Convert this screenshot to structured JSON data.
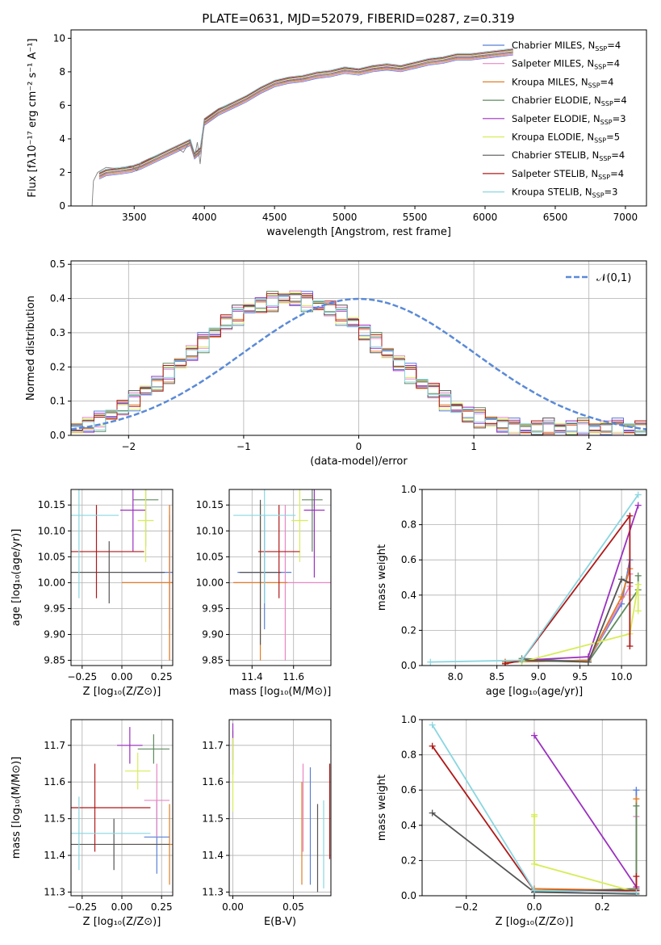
{
  "figure": {
    "title": "PLATE=0631, MJD=52079, FIBERID=0287, z=0.319"
  },
  "legend_series": [
    {
      "name": "Chabrier MILES, N",
      "sub": "SSP",
      "tail": "=4",
      "color": "#5a7fd6"
    },
    {
      "name": "Salpeter MILES, N",
      "sub": "SSP",
      "tail": "=4",
      "color": "#e887c4"
    },
    {
      "name": "Kroupa MILES, N",
      "sub": "SSP",
      "tail": "=4",
      "color": "#e07f28"
    },
    {
      "name": "Chabrier ELODIE, N",
      "sub": "SSP",
      "tail": "=4",
      "color": "#5e8a5e"
    },
    {
      "name": "Salpeter ELODIE, N",
      "sub": "SSP",
      "tail": "=3",
      "color": "#9b30c0"
    },
    {
      "name": "Kroupa ELODIE, N",
      "sub": "SSP",
      "tail": "=5",
      "color": "#d8ec5a"
    },
    {
      "name": "Chabrier STELIB, N",
      "sub": "SSP",
      "tail": "=4",
      "color": "#555555"
    },
    {
      "name": "Salpeter STELIB, N",
      "sub": "SSP",
      "tail": "=4",
      "color": "#b01818"
    },
    {
      "name": "Kroupa STELIB, N",
      "sub": "SSP",
      "tail": "=3",
      "color": "#8ad6e0"
    }
  ],
  "chart_data": [
    {
      "id": "spectrum",
      "type": "line",
      "xlabel": "wavelength [Angstrom, rest frame]",
      "ylabel": "Flux [fλ10⁻¹⁷ erg cm⁻² s⁻¹ A⁻¹]",
      "xlim": [
        3050,
        7150
      ],
      "ylim": [
        0,
        10.5
      ],
      "xticks": [
        3500,
        4000,
        4500,
        5000,
        5500,
        6000,
        6500,
        7000
      ],
      "yticks": [
        0,
        2,
        4,
        6,
        8,
        10
      ],
      "data_color": "#808080",
      "data_x": [
        3200,
        3210,
        3240,
        3260,
        3300,
        3400,
        3480,
        3520,
        3550,
        3600,
        3700,
        3800,
        3850,
        3900,
        3930,
        3950,
        3970,
        4000,
        4100,
        4200,
        4300,
        4400,
        4500,
        4600,
        4700,
        4800,
        4900,
        5000,
        5100,
        5200,
        5300,
        5400,
        5500,
        5600,
        5700,
        5800,
        5900,
        6000,
        6100,
        6200
      ],
      "data_y": [
        0.0,
        1.5,
        2.0,
        2.1,
        2.3,
        2.2,
        2.4,
        2.1,
        2.6,
        2.8,
        3.1,
        3.5,
        3.2,
        3.9,
        2.9,
        3.8,
        2.5,
        5.2,
        5.8,
        6.1,
        6.5,
        7.0,
        7.4,
        7.6,
        7.7,
        7.9,
        8.0,
        8.2,
        8.1,
        8.3,
        8.4,
        8.3,
        8.5,
        8.7,
        8.8,
        9.0,
        9.0,
        9.1,
        9.2,
        9.3
      ],
      "model_x": [
        3250,
        3300,
        3400,
        3480,
        3550,
        3600,
        3700,
        3800,
        3900,
        3930,
        3970,
        4000,
        4100,
        4200,
        4300,
        4400,
        4500,
        4600,
        4700,
        4800,
        4900,
        5000,
        5100,
        5200,
        5300,
        5400,
        5500,
        5600,
        5700,
        5800,
        5900,
        6000,
        6100,
        6200
      ],
      "model_y": [
        1.8,
        2.0,
        2.1,
        2.2,
        2.4,
        2.6,
        3.0,
        3.4,
        3.8,
        3.0,
        3.3,
        5.0,
        5.6,
        6.0,
        6.4,
        6.9,
        7.3,
        7.5,
        7.6,
        7.8,
        7.9,
        8.1,
        8.0,
        8.2,
        8.3,
        8.2,
        8.4,
        8.6,
        8.7,
        8.9,
        8.9,
        9.0,
        9.1,
        9.2
      ]
    },
    {
      "id": "residual-histogram",
      "type": "line",
      "xlabel": "(data-model)/error",
      "ylabel": "Normed distribution",
      "xlim": [
        -2.5,
        2.5
      ],
      "ylim": [
        0,
        0.51
      ],
      "xticks": [
        -2,
        -1,
        0,
        1,
        2
      ],
      "yticks": [
        0.0,
        0.1,
        0.2,
        0.3,
        0.4,
        0.5
      ],
      "legend": "𝒩(0,1)",
      "gauss_color": "#5a8ad8",
      "bin_width": 0.1,
      "hist_center": [
        0.02,
        0.03,
        0.04,
        0.06,
        0.08,
        0.1,
        0.13,
        0.15,
        0.18,
        0.21,
        0.24,
        0.27,
        0.3,
        0.33,
        0.35,
        0.37,
        0.38,
        0.39,
        0.4,
        0.4,
        0.39,
        0.38,
        0.37,
        0.35,
        0.33,
        0.3,
        0.27,
        0.24,
        0.21,
        0.18,
        0.15,
        0.13,
        0.1,
        0.08,
        0.06,
        0.05,
        0.04,
        0.03,
        0.02,
        0.02,
        0.02,
        0.02,
        0.02,
        0.02,
        0.02,
        0.02,
        0.02,
        0.02,
        0.02,
        0.02
      ]
    },
    {
      "id": "age-vs-metallicity",
      "type": "scatter",
      "xlabel": "Z [log₁₀(Z/Z⊙)]",
      "ylabel": "age  [log₁₀(age/yr)]",
      "xlim": [
        -0.32,
        0.32
      ],
      "ylim": [
        9.84,
        10.18
      ],
      "xticks": [
        -0.25,
        0.0,
        0.25
      ],
      "xticklabels": [
        "−0.25",
        "0.00",
        "0.25"
      ],
      "yticks": [
        9.85,
        9.9,
        9.95,
        10.0,
        10.05,
        10.1,
        10.15
      ],
      "points": [
        {
          "series": 0,
          "x": 0.3,
          "y": 10.02,
          "xerr": 0.3,
          "yerr": 0.11
        },
        {
          "series": 1,
          "x": 0.3,
          "y": 10.0,
          "xerr": 0.3,
          "yerr": 0.15
        },
        {
          "series": 2,
          "x": 0.3,
          "y": 10.0,
          "xerr": 0.3,
          "yerr": 0.15
        },
        {
          "series": 3,
          "x": 0.15,
          "y": 10.16,
          "xerr": 0.08,
          "yerr": 0.09
        },
        {
          "series": 4,
          "x": 0.07,
          "y": 10.14,
          "xerr": 0.08,
          "yerr": 0.08
        },
        {
          "series": 5,
          "x": 0.15,
          "y": 10.12,
          "xerr": 0.05,
          "yerr": 0.08
        },
        {
          "series": 6,
          "x": -0.08,
          "y": 10.02,
          "xerr": 0.35,
          "yerr": 0.06
        },
        {
          "series": 7,
          "x": -0.16,
          "y": 10.06,
          "xerr": 0.3,
          "yerr": 0.09
        },
        {
          "series": 8,
          "x": -0.27,
          "y": 10.13,
          "xerr": 0.25,
          "yerr": 0.16
        }
      ]
    },
    {
      "id": "age-vs-mass",
      "type": "scatter",
      "xlabel": "mass [log₁₀(M/M⊙)]",
      "ylabel": "",
      "xlim": [
        11.29,
        11.78
      ],
      "ylim": [
        9.84,
        10.18
      ],
      "xticks": [
        11.4,
        11.6
      ],
      "yticks": [
        9.85,
        9.9,
        9.95,
        10.0,
        10.05,
        10.1,
        10.15
      ],
      "points": [
        {
          "series": 0,
          "x": 11.46,
          "y": 10.02,
          "xerr": 0.13,
          "yerr": 0.11
        },
        {
          "series": 1,
          "x": 11.56,
          "y": 10.0,
          "xerr": 0.25,
          "yerr": 0.15
        },
        {
          "series": 2,
          "x": 11.44,
          "y": 10.0,
          "xerr": 0.13,
          "yerr": 0.15
        },
        {
          "series": 3,
          "x": 11.69,
          "y": 10.16,
          "xerr": 0.05,
          "yerr": 0.1
        },
        {
          "series": 4,
          "x": 11.7,
          "y": 10.14,
          "xerr": 0.05,
          "yerr": 0.13
        },
        {
          "series": 5,
          "x": 11.63,
          "y": 10.12,
          "xerr": 0.04,
          "yerr": 0.08
        },
        {
          "series": 6,
          "x": 11.44,
          "y": 10.02,
          "xerr": 0.1,
          "yerr": 0.14
        },
        {
          "series": 7,
          "x": 11.53,
          "y": 10.06,
          "xerr": 0.1,
          "yerr": 0.09
        },
        {
          "series": 8,
          "x": 11.46,
          "y": 10.13,
          "xerr": 0.15,
          "yerr": 0.17
        }
      ]
    },
    {
      "id": "mass-weight-vs-age",
      "type": "line",
      "xlabel": "age  [log₁₀(age/yr)]",
      "ylabel": "mass weight",
      "xlim": [
        7.6,
        10.3
      ],
      "ylim": [
        0,
        1.0
      ],
      "xticks": [
        8.0,
        8.5,
        9.0,
        9.5,
        10.0
      ],
      "yticks": [
        0.0,
        0.2,
        0.4,
        0.6,
        0.8,
        1.0
      ],
      "series": [
        {
          "series": 0,
          "x": [
            8.6,
            9.6,
            10.0,
            10.1
          ],
          "y": [
            0.02,
            0.03,
            0.35,
            0.6
          ]
        },
        {
          "series": 1,
          "x": [
            8.6,
            9.6,
            10.1,
            10.1
          ],
          "y": [
            0.02,
            0.03,
            0.45,
            0.52
          ]
        },
        {
          "series": 2,
          "x": [
            8.6,
            9.6,
            10.0,
            10.1
          ],
          "y": [
            0.02,
            0.03,
            0.39,
            0.55
          ]
        },
        {
          "series": 3,
          "x": [
            8.8,
            9.6,
            10.2,
            10.2
          ],
          "y": [
            0.04,
            0.02,
            0.43,
            0.51
          ]
        },
        {
          "series": 4,
          "x": [
            8.8,
            9.6,
            10.2
          ],
          "y": [
            0.03,
            0.05,
            0.91
          ]
        },
        {
          "series": 5,
          "x": [
            8.8,
            10.1,
            10.2,
            10.2
          ],
          "y": [
            0.02,
            0.18,
            0.46,
            0.31
          ]
        },
        {
          "series": 6,
          "x": [
            8.6,
            8.8,
            9.6,
            10.0,
            10.1
          ],
          "y": [
            0.01,
            0.03,
            0.02,
            0.49,
            0.47
          ]
        },
        {
          "series": 7,
          "x": [
            8.6,
            8.8,
            10.1,
            10.1
          ],
          "y": [
            0.01,
            0.03,
            0.85,
            0.11
          ]
        },
        {
          "series": 8,
          "x": [
            7.7,
            8.8,
            10.2
          ],
          "y": [
            0.02,
            0.03,
            0.97
          ]
        }
      ]
    },
    {
      "id": "mass-vs-metallicity",
      "type": "scatter",
      "xlabel": "Z [log₁₀(Z/Z⊙)]",
      "ylabel": "mass [log₁₀(M/M⊙)]",
      "xlim": [
        -0.32,
        0.32
      ],
      "ylim": [
        11.29,
        11.77
      ],
      "xticks": [
        -0.25,
        0.0,
        0.25
      ],
      "xticklabels": [
        "−0.25",
        "0.00",
        "0.25"
      ],
      "yticks": [
        11.3,
        11.4,
        11.5,
        11.6,
        11.7
      ],
      "points": [
        {
          "series": 0,
          "x": 0.22,
          "y": 11.45,
          "xerr": 0.08,
          "yerr": 0.1
        },
        {
          "series": 1,
          "x": 0.22,
          "y": 11.55,
          "xerr": 0.08,
          "yerr": 0.1
        },
        {
          "series": 2,
          "x": 0.3,
          "y": 11.43,
          "xerr": 0.3,
          "yerr": 0.11
        },
        {
          "series": 3,
          "x": 0.2,
          "y": 11.69,
          "xerr": 0.1,
          "yerr": 0.04
        },
        {
          "series": 4,
          "x": 0.05,
          "y": 11.7,
          "xerr": 0.08,
          "yerr": 0.05
        },
        {
          "series": 5,
          "x": 0.1,
          "y": 11.63,
          "xerr": 0.08,
          "yerr": 0.05
        },
        {
          "series": 6,
          "x": -0.05,
          "y": 11.43,
          "xerr": 0.35,
          "yerr": 0.07
        },
        {
          "series": 7,
          "x": -0.17,
          "y": 11.53,
          "xerr": 0.35,
          "yerr": 0.12
        },
        {
          "series": 8,
          "x": -0.27,
          "y": 11.46,
          "xerr": 0.45,
          "yerr": 0.1
        }
      ]
    },
    {
      "id": "mass-vs-ebv",
      "type": "scatter",
      "xlabel": "E(B-V)",
      "ylabel": "",
      "xlim": [
        -0.003,
        0.081
      ],
      "ylim": [
        11.29,
        11.77
      ],
      "xticks": [
        0.0,
        0.05
      ],
      "xticklabels": [
        "0.00",
        "0.05"
      ],
      "yticks": [
        11.3,
        11.4,
        11.5,
        11.6,
        11.7
      ],
      "points": [
        {
          "series": 0,
          "x": 0.064,
          "y": 11.48,
          "yerr": 0.16
        },
        {
          "series": 1,
          "x": 0.058,
          "y": 11.53,
          "yerr": 0.12
        },
        {
          "series": 2,
          "x": 0.057,
          "y": 11.46,
          "yerr": 0.14
        },
        {
          "series": 3,
          "x": 0.0,
          "y": 11.68,
          "yerr": 0.06
        },
        {
          "series": 4,
          "x": 0.0,
          "y": 11.71,
          "yerr": 0.05
        },
        {
          "series": 5,
          "x": 0.0,
          "y": 11.62,
          "yerr": 0.1
        },
        {
          "series": 6,
          "x": 0.07,
          "y": 11.42,
          "yerr": 0.12
        },
        {
          "series": 7,
          "x": 0.08,
          "y": 11.52,
          "yerr": 0.13
        },
        {
          "series": 8,
          "x": 0.075,
          "y": 11.43,
          "yerr": 0.12
        }
      ]
    },
    {
      "id": "mass-weight-vs-metallicity",
      "type": "line",
      "xlabel": "Z [log₁₀(Z/Z⊙)]",
      "ylabel": "mass weight",
      "xlim": [
        -0.33,
        0.33
      ],
      "ylim": [
        0,
        1.0
      ],
      "xticks": [
        -0.2,
        0.0,
        0.2
      ],
      "xticklabels": [
        "−0.2",
        "0.0",
        "0.2"
      ],
      "yticks": [
        0.0,
        0.2,
        0.4,
        0.6,
        0.8,
        1.0
      ],
      "series": [
        {
          "series": 0,
          "x": [
            0.0,
            0.3,
            0.3
          ],
          "y": [
            0.02,
            0.03,
            0.6
          ]
        },
        {
          "series": 1,
          "x": [
            0.0,
            0.3,
            0.3
          ],
          "y": [
            0.03,
            0.03,
            0.45
          ]
        },
        {
          "series": 2,
          "x": [
            0.0,
            0.3,
            0.3
          ],
          "y": [
            0.04,
            0.03,
            0.55
          ]
        },
        {
          "series": 3,
          "x": [
            0.0,
            0.3,
            0.3
          ],
          "y": [
            0.02,
            0.04,
            0.51
          ]
        },
        {
          "series": 4,
          "x": [
            0.0,
            0.3,
            0.3
          ],
          "y": [
            0.91,
            0.05,
            0.03
          ]
        },
        {
          "series": 5,
          "x": [
            0.0,
            0.0,
            0.0,
            0.3
          ],
          "y": [
            0.46,
            0.45,
            0.18,
            0.02
          ]
        },
        {
          "series": 6,
          "x": [
            -0.3,
            0.0,
            0.3
          ],
          "y": [
            0.47,
            0.02,
            0.01
          ]
        },
        {
          "series": 7,
          "x": [
            -0.3,
            0.0,
            0.3,
            0.3
          ],
          "y": [
            0.85,
            0.03,
            0.03,
            0.11
          ]
        },
        {
          "series": 8,
          "x": [
            -0.3,
            0.0,
            0.3
          ],
          "y": [
            0.97,
            0.03,
            0.02
          ]
        }
      ]
    }
  ]
}
